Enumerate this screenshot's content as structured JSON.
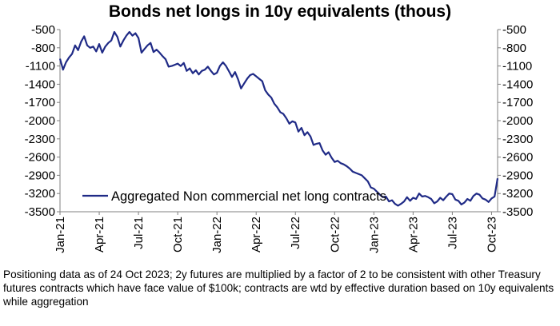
{
  "chart_data": {
    "type": "line",
    "title": "Bonds net longs in 10y equivalents (thous)",
    "xlabel": "",
    "ylabel": "",
    "ylim": [
      -3500,
      -500
    ],
    "ystep": 300,
    "y_ticks": [
      "-500",
      "-800",
      "-1100",
      "-1400",
      "-1700",
      "-2000",
      "-2300",
      "-2600",
      "-2900",
      "-3200",
      "-3500"
    ],
    "x_ticks": [
      "Jan-21",
      "Apr-21",
      "Jul-21",
      "Oct-21",
      "Jan-22",
      "Apr-22",
      "Jul-22",
      "Oct-22",
      "Jan-23",
      "Apr-23",
      "Jul-23",
      "Oct-23"
    ],
    "x_tick_index": [
      0,
      13,
      26,
      39,
      52,
      65,
      78,
      91,
      104,
      117,
      130,
      143
    ],
    "legend": "top-right-inside",
    "line_color": "#1f2a86",
    "series": [
      {
        "name": "Aggregated Non commercial net long contracts",
        "values": [
          -980,
          -1160,
          -1040,
          -960,
          -900,
          -760,
          -840,
          -700,
          -610,
          -760,
          -800,
          -780,
          -860,
          -740,
          -880,
          -780,
          -720,
          -680,
          -540,
          -620,
          -780,
          -680,
          -600,
          -540,
          -600,
          -560,
          -640,
          -880,
          -820,
          -760,
          -720,
          -870,
          -830,
          -880,
          -940,
          -990,
          -1110,
          -1100,
          -1080,
          -1060,
          -1100,
          -1050,
          -1180,
          -1140,
          -1220,
          -1170,
          -1240,
          -1180,
          -1160,
          -1110,
          -1180,
          -1240,
          -1210,
          -1100,
          -1040,
          -1100,
          -1190,
          -1280,
          -1200,
          -1320,
          -1470,
          -1390,
          -1310,
          -1250,
          -1230,
          -1270,
          -1310,
          -1350,
          -1500,
          -1570,
          -1620,
          -1720,
          -1780,
          -1860,
          -1890,
          -1960,
          -2050,
          -2010,
          -2030,
          -2180,
          -2120,
          -2240,
          -2190,
          -2260,
          -2400,
          -2380,
          -2370,
          -2490,
          -2560,
          -2520,
          -2610,
          -2680,
          -2660,
          -2700,
          -2720,
          -2750,
          -2790,
          -2840,
          -2860,
          -2880,
          -2900,
          -2950,
          -3000,
          -3100,
          -3120,
          -3170,
          -3220,
          -3260,
          -3250,
          -3330,
          -3310,
          -3370,
          -3400,
          -3370,
          -3330,
          -3260,
          -3320,
          -3270,
          -3290,
          -3200,
          -3250,
          -3240,
          -3260,
          -3290,
          -3360,
          -3330,
          -3270,
          -3310,
          -3250,
          -3200,
          -3210,
          -3300,
          -3320,
          -3380,
          -3350,
          -3290,
          -3320,
          -3240,
          -3200,
          -3220,
          -3280,
          -3300,
          -3340,
          -3280,
          -3250,
          -2950
        ]
      }
    ]
  },
  "footnote": "Positioning data as of 24 Oct 2023; 2y futures are multiplied by a factor of 2 to be consistent with other Treasury futures contracts which have face value of $100k; contracts are wtd by effective duration based on 10y equivalents while aggregation"
}
